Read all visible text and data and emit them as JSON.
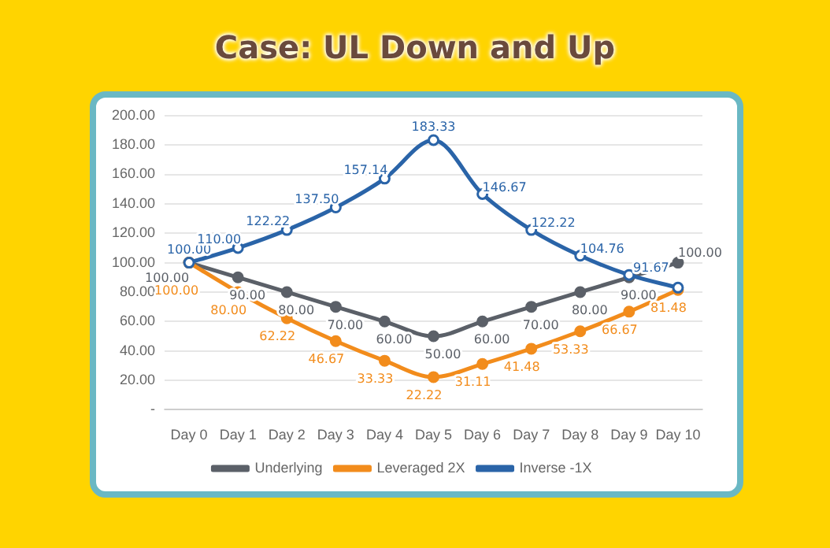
{
  "chart_data": {
    "type": "line",
    "title": "Case: UL Down and Up",
    "categories": [
      "Day 0",
      "Day 1",
      "Day 2",
      "Day 3",
      "Day 4",
      "Day 5",
      "Day 6",
      "Day 7",
      "Day 8",
      "Day 9",
      "Day 10"
    ],
    "series": [
      {
        "name": "Underlying",
        "color": "#5b6068",
        "values": [
          100,
          90,
          80,
          70,
          60,
          50,
          60,
          70,
          80,
          90,
          100
        ],
        "value_labels": [
          "100.00",
          "90.00",
          "80.00",
          "70.00",
          "60.00",
          "50.00",
          "60.00",
          "70.00",
          "80.00",
          "90.00",
          "100.00"
        ]
      },
      {
        "name": "Leveraged 2X",
        "color": "#f28c1c",
        "values": [
          100,
          80,
          62.22,
          46.67,
          33.33,
          22.22,
          31.11,
          41.48,
          53.33,
          66.67,
          81.48
        ],
        "value_labels": [
          "100.00",
          "80.00",
          "62.22",
          "46.67",
          "33.33",
          "22.22",
          "31.11",
          "41.48",
          "53.33",
          "66.67",
          "81.48"
        ]
      },
      {
        "name": "Inverse -1X",
        "color": "#2a64a8",
        "values": [
          100,
          110,
          122.22,
          137.5,
          157.14,
          183.33,
          146.67,
          122.22,
          104.76,
          91.67,
          83
        ],
        "value_labels": [
          "100.00",
          "110.00",
          "122.22",
          "137.50",
          "157.14",
          "183.33",
          "146.67",
          "122.22",
          "104.76",
          "91.67",
          null
        ]
      }
    ],
    "ylim": [
      0,
      200
    ],
    "yticks": [
      {
        "value": 0,
        "label": "-"
      },
      {
        "value": 20,
        "label": "20.00"
      },
      {
        "value": 40,
        "label": "40.00"
      },
      {
        "value": 60,
        "label": "60.00"
      },
      {
        "value": 80,
        "label": "80.00"
      },
      {
        "value": 100,
        "label": "100.00"
      },
      {
        "value": 120,
        "label": "120.00"
      },
      {
        "value": 140,
        "label": "140.00"
      },
      {
        "value": 160,
        "label": "160.00"
      },
      {
        "value": 180,
        "label": "180.00"
      },
      {
        "value": 200,
        "label": "200.00"
      }
    ],
    "grid": "y",
    "legend": "bottom",
    "marker": "circle",
    "line_style": "solid"
  }
}
